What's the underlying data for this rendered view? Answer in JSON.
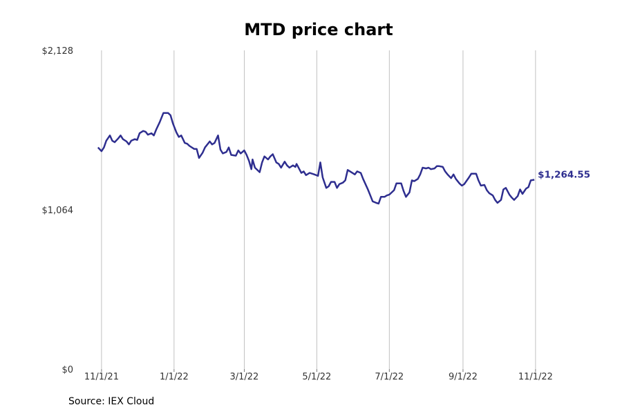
{
  "chart_data": {
    "type": "line",
    "title": "MTD price chart",
    "xlabel": "",
    "ylabel": "",
    "x_ticks": [
      {
        "date": "2021-11-01",
        "label": "11/1/21"
      },
      {
        "date": "2022-01-01",
        "label": "1/1/22"
      },
      {
        "date": "2022-03-01",
        "label": "3/1/22"
      },
      {
        "date": "2022-05-01",
        "label": "5/1/22"
      },
      {
        "date": "2022-07-01",
        "label": "7/1/22"
      },
      {
        "date": "2022-09-01",
        "label": "9/1/22"
      },
      {
        "date": "2022-11-01",
        "label": "11/1/22"
      }
    ],
    "y_ticks": [
      {
        "value": 0,
        "label": "$0"
      },
      {
        "value": 1064,
        "label": "$1,064"
      },
      {
        "value": 2128,
        "label": "$2,128"
      }
    ],
    "ylim": [
      0,
      2128
    ],
    "xlim": [
      "2021-10-21",
      "2022-12-10"
    ],
    "grid": {
      "vertical": true,
      "horizontal": false
    },
    "legend": "none",
    "line_color": "#2e2e8f",
    "grid_color": "#b0b0b0",
    "end_label": "$1,264.55",
    "series": [
      {
        "points": [
          [
            "2021-10-29",
            1480
          ],
          [
            "2021-11-01",
            1455
          ],
          [
            "2021-11-03",
            1480
          ],
          [
            "2021-11-05",
            1525
          ],
          [
            "2021-11-08",
            1560
          ],
          [
            "2021-11-10",
            1525
          ],
          [
            "2021-11-12",
            1515
          ],
          [
            "2021-11-15",
            1540
          ],
          [
            "2021-11-17",
            1560
          ],
          [
            "2021-11-19",
            1535
          ],
          [
            "2021-11-22",
            1520
          ],
          [
            "2021-11-24",
            1500
          ],
          [
            "2021-11-26",
            1525
          ],
          [
            "2021-11-29",
            1535
          ],
          [
            "2021-12-01",
            1530
          ],
          [
            "2021-12-03",
            1575
          ],
          [
            "2021-12-06",
            1590
          ],
          [
            "2021-12-08",
            1585
          ],
          [
            "2021-12-10",
            1565
          ],
          [
            "2021-12-13",
            1575
          ],
          [
            "2021-12-15",
            1560
          ],
          [
            "2021-12-17",
            1600
          ],
          [
            "2021-12-20",
            1650
          ],
          [
            "2021-12-23",
            1710
          ],
          [
            "2021-12-27",
            1710
          ],
          [
            "2021-12-29",
            1695
          ],
          [
            "2021-12-31",
            1640
          ],
          [
            "2022-01-03",
            1580
          ],
          [
            "2022-01-05",
            1550
          ],
          [
            "2022-01-07",
            1560
          ],
          [
            "2022-01-10",
            1510
          ],
          [
            "2022-01-12",
            1505
          ],
          [
            "2022-01-14",
            1490
          ],
          [
            "2022-01-18",
            1470
          ],
          [
            "2022-01-20",
            1470
          ],
          [
            "2022-01-22",
            1410
          ],
          [
            "2022-01-25",
            1445
          ],
          [
            "2022-01-27",
            1480
          ],
          [
            "2022-01-31",
            1520
          ],
          [
            "2022-02-02",
            1500
          ],
          [
            "2022-02-04",
            1510
          ],
          [
            "2022-02-07",
            1560
          ],
          [
            "2022-02-09",
            1465
          ],
          [
            "2022-02-11",
            1440
          ],
          [
            "2022-02-14",
            1450
          ],
          [
            "2022-02-16",
            1480
          ],
          [
            "2022-02-18",
            1430
          ],
          [
            "2022-02-22",
            1425
          ],
          [
            "2022-02-24",
            1460
          ],
          [
            "2022-02-26",
            1440
          ],
          [
            "2022-03-01",
            1460
          ],
          [
            "2022-03-03",
            1430
          ],
          [
            "2022-03-05",
            1390
          ],
          [
            "2022-03-07",
            1335
          ],
          [
            "2022-03-08",
            1400
          ],
          [
            "2022-03-10",
            1345
          ],
          [
            "2022-03-14",
            1315
          ],
          [
            "2022-03-16",
            1380
          ],
          [
            "2022-03-18",
            1420
          ],
          [
            "2022-03-21",
            1400
          ],
          [
            "2022-03-23",
            1420
          ],
          [
            "2022-03-25",
            1435
          ],
          [
            "2022-03-28",
            1380
          ],
          [
            "2022-03-30",
            1370
          ],
          [
            "2022-04-01",
            1345
          ],
          [
            "2022-04-04",
            1385
          ],
          [
            "2022-04-06",
            1360
          ],
          [
            "2022-04-08",
            1345
          ],
          [
            "2022-04-11",
            1360
          ],
          [
            "2022-04-13",
            1350
          ],
          [
            "2022-04-14",
            1370
          ],
          [
            "2022-04-18",
            1310
          ],
          [
            "2022-04-20",
            1320
          ],
          [
            "2022-04-22",
            1295
          ],
          [
            "2022-04-25",
            1310
          ],
          [
            "2022-04-27",
            1305
          ],
          [
            "2022-04-29",
            1300
          ],
          [
            "2022-05-02",
            1290
          ],
          [
            "2022-05-04",
            1380
          ],
          [
            "2022-05-06",
            1280
          ],
          [
            "2022-05-09",
            1210
          ],
          [
            "2022-05-11",
            1220
          ],
          [
            "2022-05-13",
            1250
          ],
          [
            "2022-05-16",
            1250
          ],
          [
            "2022-05-18",
            1210
          ],
          [
            "2022-05-20",
            1235
          ],
          [
            "2022-05-23",
            1245
          ],
          [
            "2022-05-25",
            1260
          ],
          [
            "2022-05-27",
            1330
          ],
          [
            "2022-05-31",
            1310
          ],
          [
            "2022-06-02",
            1300
          ],
          [
            "2022-06-04",
            1320
          ],
          [
            "2022-06-07",
            1310
          ],
          [
            "2022-06-09",
            1270
          ],
          [
            "2022-06-13",
            1200
          ],
          [
            "2022-06-15",
            1160
          ],
          [
            "2022-06-17",
            1120
          ],
          [
            "2022-06-20",
            1110
          ],
          [
            "2022-06-22",
            1105
          ],
          [
            "2022-06-24",
            1150
          ],
          [
            "2022-06-27",
            1150
          ],
          [
            "2022-06-29",
            1160
          ],
          [
            "2022-07-01",
            1165
          ],
          [
            "2022-07-05",
            1195
          ],
          [
            "2022-07-07",
            1240
          ],
          [
            "2022-07-11",
            1240
          ],
          [
            "2022-07-13",
            1190
          ],
          [
            "2022-07-15",
            1150
          ],
          [
            "2022-07-18",
            1180
          ],
          [
            "2022-07-20",
            1260
          ],
          [
            "2022-07-22",
            1255
          ],
          [
            "2022-07-25",
            1270
          ],
          [
            "2022-07-27",
            1300
          ],
          [
            "2022-07-29",
            1345
          ],
          [
            "2022-08-01",
            1340
          ],
          [
            "2022-08-03",
            1345
          ],
          [
            "2022-08-05",
            1335
          ],
          [
            "2022-08-08",
            1340
          ],
          [
            "2022-08-10",
            1355
          ],
          [
            "2022-08-12",
            1355
          ],
          [
            "2022-08-15",
            1350
          ],
          [
            "2022-08-17",
            1320
          ],
          [
            "2022-08-19",
            1300
          ],
          [
            "2022-08-22",
            1275
          ],
          [
            "2022-08-24",
            1300
          ],
          [
            "2022-08-26",
            1270
          ],
          [
            "2022-08-29",
            1240
          ],
          [
            "2022-08-31",
            1225
          ],
          [
            "2022-09-02",
            1235
          ],
          [
            "2022-09-06",
            1280
          ],
          [
            "2022-09-08",
            1305
          ],
          [
            "2022-09-12",
            1305
          ],
          [
            "2022-09-14",
            1260
          ],
          [
            "2022-09-16",
            1225
          ],
          [
            "2022-09-19",
            1230
          ],
          [
            "2022-09-21",
            1195
          ],
          [
            "2022-09-23",
            1175
          ],
          [
            "2022-09-26",
            1160
          ],
          [
            "2022-09-28",
            1130
          ],
          [
            "2022-09-30",
            1110
          ],
          [
            "2022-10-03",
            1130
          ],
          [
            "2022-10-05",
            1200
          ],
          [
            "2022-10-07",
            1210
          ],
          [
            "2022-10-10",
            1165
          ],
          [
            "2022-10-12",
            1145
          ],
          [
            "2022-10-14",
            1130
          ],
          [
            "2022-10-17",
            1155
          ],
          [
            "2022-10-19",
            1200
          ],
          [
            "2022-10-21",
            1170
          ],
          [
            "2022-10-24",
            1205
          ],
          [
            "2022-10-26",
            1215
          ],
          [
            "2022-10-28",
            1260
          ],
          [
            "2022-10-31",
            1264.55
          ]
        ]
      }
    ]
  },
  "source": "Source: IEX Cloud"
}
